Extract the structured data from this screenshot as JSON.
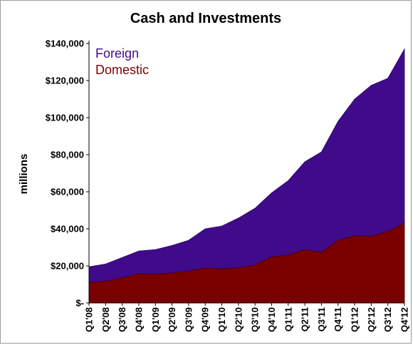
{
  "chart_data": {
    "type": "area",
    "stacked": true,
    "title": "Cash and Investments",
    "xlabel": "",
    "ylabel": "millions",
    "ylim": [
      0,
      140000
    ],
    "yticks": [
      0,
      20000,
      40000,
      60000,
      80000,
      100000,
      120000,
      140000
    ],
    "ytick_labels": [
      "$-",
      "$20,000",
      "$40,000",
      "$60,000",
      "$80,000",
      "$100,000",
      "$120,000",
      "$140,000"
    ],
    "categories": [
      "Q1'08",
      "Q2'08",
      "Q3'08",
      "Q4'08",
      "Q1'09",
      "Q2'09",
      "Q3'09",
      "Q4'09",
      "Q1'10",
      "Q2'10",
      "Q3'10",
      "Q4'10",
      "Q1'11",
      "Q2'11",
      "Q3'11",
      "Q4'11",
      "Q1'12",
      "Q2'12",
      "Q3'12",
      "Q4'12"
    ],
    "series": [
      {
        "name": "Domestic",
        "color": "#7a0000",
        "values": [
          11000,
          11800,
          13500,
          15800,
          15500,
          16200,
          17200,
          18800,
          18300,
          19000,
          20500,
          24800,
          25800,
          28800,
          27300,
          33800,
          36200,
          36000,
          38500,
          43000
        ]
      },
      {
        "name": "Foreign",
        "color": "#3f0b8a",
        "values": [
          8500,
          9200,
          11000,
          12200,
          13300,
          14800,
          16600,
          21200,
          23200,
          26800,
          30600,
          34600,
          40200,
          47400,
          54200,
          64200,
          73800,
          81400,
          82700,
          94000
        ]
      }
    ],
    "legend": {
      "position": "top-left",
      "order": [
        "Foreign",
        "Domestic"
      ]
    },
    "grid": false
  }
}
